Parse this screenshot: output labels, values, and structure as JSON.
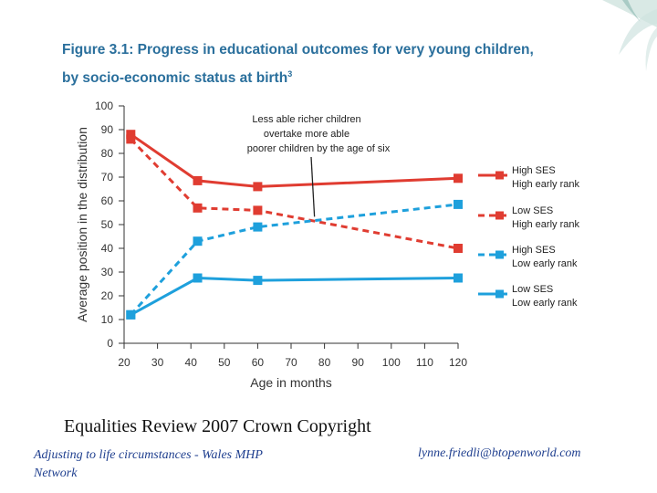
{
  "title_line1": "Figure 3.1: Progress in educational outcomes for very young children,",
  "title_line2": "by socio-economic status at birth",
  "title_sup": "3",
  "caption": "Equalities Review  2007 Crown Copyright",
  "footer_left": "Adjusting to life circumstances - Wales MHP Network",
  "footer_right": "lynne.friedli@btopenworld.com",
  "chart_data": {
    "type": "line",
    "xlabel": "Age in months",
    "ylabel": "Average position in the distribution",
    "xlim": [
      20,
      120
    ],
    "ylim": [
      0,
      100
    ],
    "xticks": [
      20,
      30,
      40,
      50,
      60,
      70,
      80,
      90,
      100,
      110,
      120
    ],
    "yticks": [
      0,
      10,
      20,
      30,
      40,
      50,
      60,
      70,
      80,
      90,
      100
    ],
    "series": [
      {
        "name": "High SES High early rank",
        "label_line1": "High SES",
        "label_line2": "High early rank",
        "color": "#e03c31",
        "dashed": false,
        "x": [
          22,
          42,
          60,
          120
        ],
        "y": [
          88,
          68.5,
          66,
          69.5
        ]
      },
      {
        "name": "Low SES High early rank",
        "label_line1": "Low SES",
        "label_line2": "High early rank",
        "color": "#e03c31",
        "dashed": true,
        "x": [
          22,
          42,
          60,
          120
        ],
        "y": [
          86,
          57,
          56,
          40
        ]
      },
      {
        "name": "High SES Low early rank",
        "label_line1": "High SES",
        "label_line2": "Low early rank",
        "color": "#1ea0dc",
        "dashed": true,
        "x": [
          22,
          42,
          60,
          120
        ],
        "y": [
          12,
          43,
          49,
          58.5
        ]
      },
      {
        "name": "Low SES Low early rank",
        "label_line1": "Low SES",
        "label_line2": "Low early rank",
        "color": "#1ea0dc",
        "dashed": false,
        "x": [
          22,
          42,
          60,
          120
        ],
        "y": [
          12,
          27.5,
          26.5,
          27.5
        ]
      }
    ],
    "annotation": {
      "lines": [
        "Less able richer children",
        "overtake more able",
        "poorer children by the age of six"
      ],
      "arrow_to_x": 77,
      "arrow_to_y": 51
    }
  }
}
